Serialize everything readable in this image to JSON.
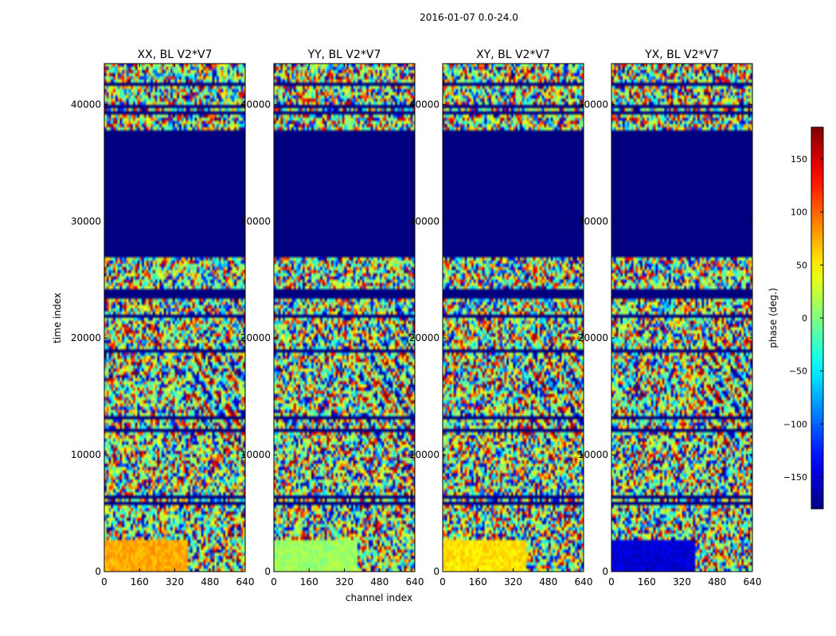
{
  "chart_data": {
    "type": "heatmap",
    "suptitle": "2016-01-07 0.0-24.0",
    "xlabel": "channel index",
    "ylabel": "time index",
    "xlim": [
      0,
      640
    ],
    "ylim": [
      0,
      43500
    ],
    "xticks": [
      0,
      160,
      320,
      480,
      640
    ],
    "yticks": [
      0,
      10000,
      20000,
      30000,
      40000
    ],
    "panels": [
      {
        "title": "XX, BL V2*V7",
        "bottom_band_phase": 75
      },
      {
        "title": "YY, BL V2*V7",
        "bottom_band_phase": 10
      },
      {
        "title": "XY, BL V2*V7",
        "bottom_band_phase": 55
      },
      {
        "title": "YX, BL V2*V7",
        "bottom_band_phase": -150
      }
    ],
    "flagged_time_ranges": [
      [
        27000,
        37400
      ],
      [
        37650,
        37800
      ],
      [
        38300,
        38450
      ],
      [
        39100,
        39350
      ],
      [
        39700,
        40050
      ],
      [
        40700,
        40900
      ],
      [
        41500,
        41800
      ],
      [
        23400,
        24200
      ],
      [
        21700,
        21900
      ],
      [
        18800,
        19000
      ],
      [
        13000,
        13200
      ],
      [
        11900,
        12100
      ],
      [
        6300,
        6500
      ],
      [
        5700,
        5900
      ]
    ],
    "colorbar": {
      "label": "phase (deg.)",
      "range": [
        -180,
        180
      ],
      "ticks": [
        150,
        100,
        50,
        0,
        -50,
        -100,
        -150
      ],
      "tick_labels": [
        "150",
        "100",
        "50",
        "0",
        "−50",
        "−100",
        "−150"
      ],
      "colormap": "jet"
    }
  }
}
